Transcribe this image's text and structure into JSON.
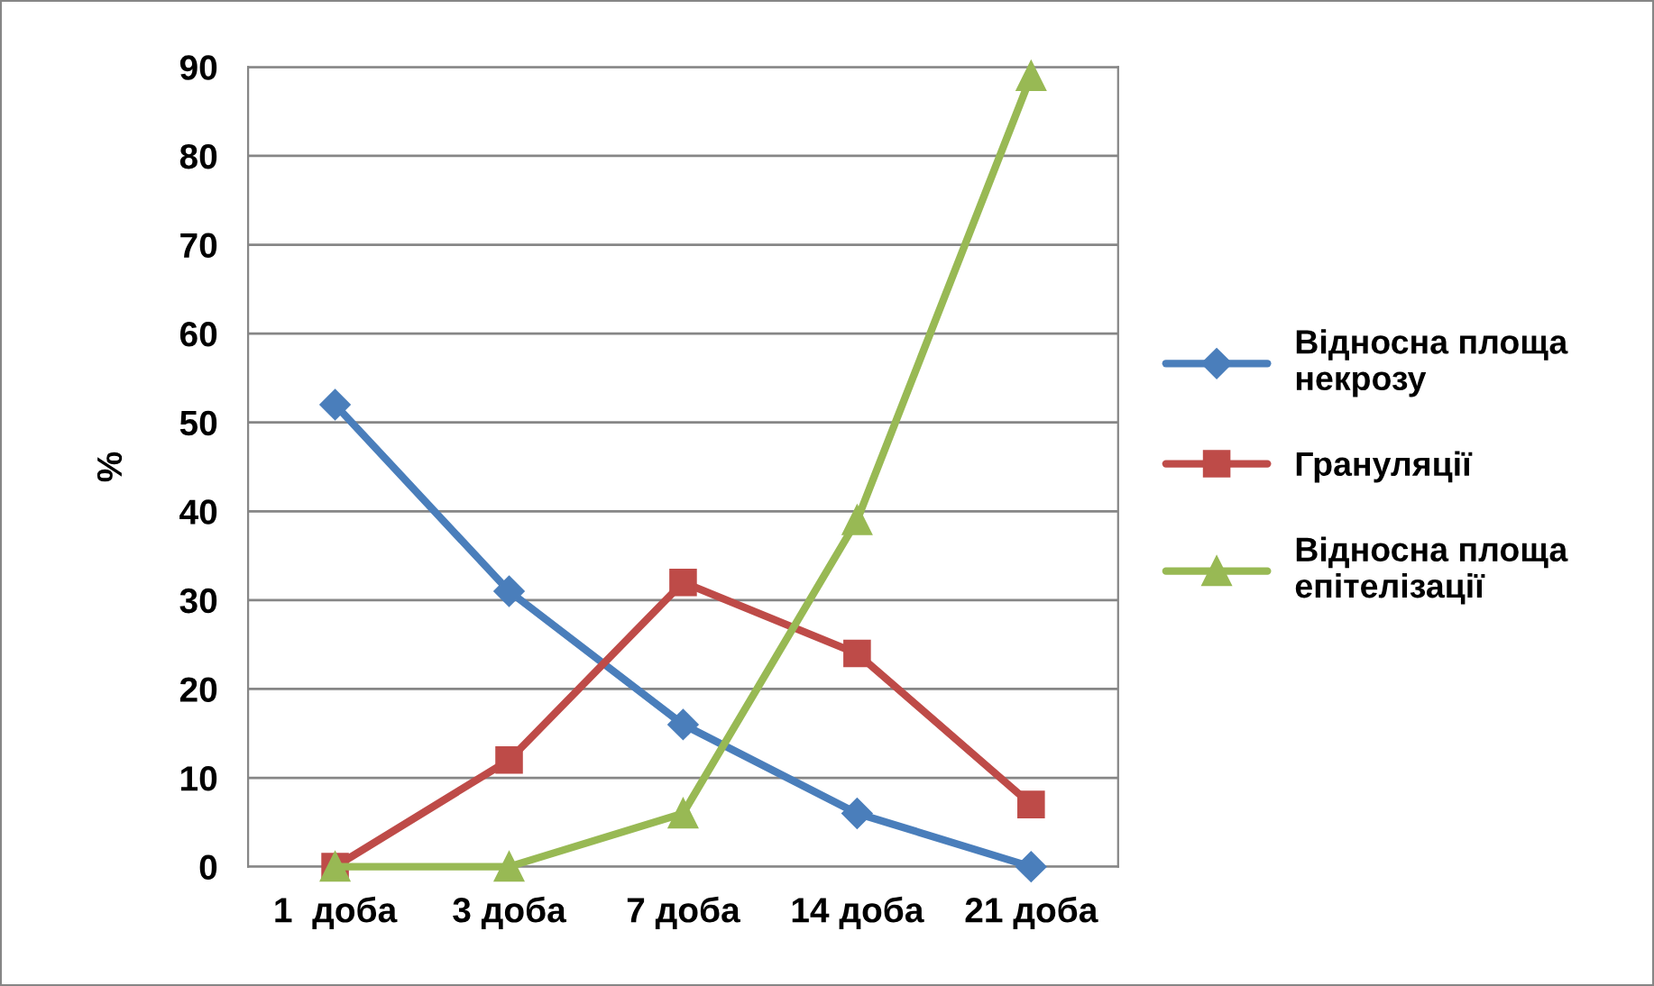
{
  "chart_data": {
    "type": "line",
    "ylabel": "%",
    "categories": [
      "1  доба",
      "3 доба",
      "7 доба",
      "14 доба",
      "21 доба"
    ],
    "series": [
      {
        "name": "Відносна площа\nнекрозу",
        "color": "#4a7ebb",
        "marker": "diamond",
        "values": [
          52,
          31,
          16,
          6,
          0
        ]
      },
      {
        "name": "Грануляції",
        "color": "#be4b48",
        "marker": "square",
        "values": [
          0,
          12,
          32,
          24,
          7
        ]
      },
      {
        "name": "Відносна площа\nепітелізації",
        "color": "#98b954",
        "marker": "triangle",
        "values": [
          0,
          0,
          6,
          39,
          89
        ]
      }
    ],
    "ylim": [
      0,
      90
    ],
    "yticks": [
      0,
      10,
      20,
      30,
      40,
      50,
      60,
      70,
      80,
      90
    ],
    "grid": "y",
    "legend": "right"
  }
}
